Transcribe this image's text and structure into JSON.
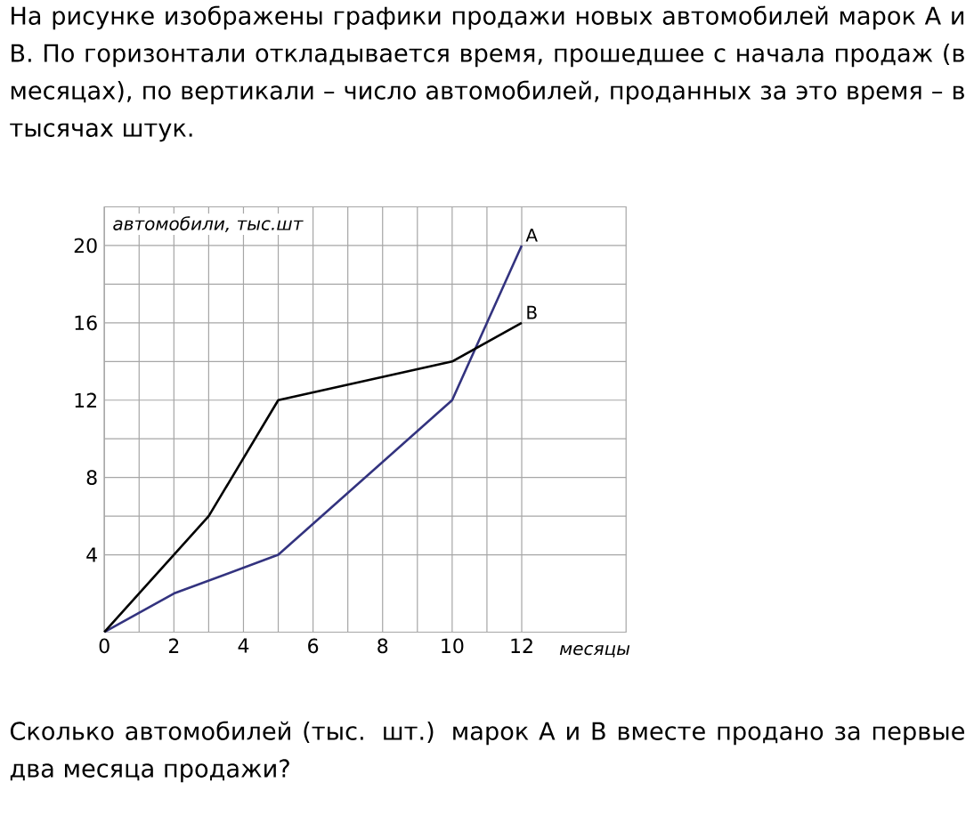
{
  "chart_data": {
    "type": "line",
    "title": "На рисунке изображены графики продажи новых автомобилей марок А и В. По горизонтали откладывается время, прошедшее с начала продаж (в месяцах), по вертикали – число автомобилей, проданных за это время – в тысячах штук.",
    "annotations": [
      "Сколько автомобилей (тыс. шт.) марок А и В вместе продано за первые два месяца продажи?"
    ],
    "xlabel": "месяцы",
    "ylabel": "автомобили, тыс.шт",
    "xlim": [
      0,
      15
    ],
    "ylim": [
      0,
      22
    ],
    "xticks": [
      0,
      2,
      4,
      6,
      8,
      10,
      12
    ],
    "yticks": [
      4,
      8,
      12,
      16,
      20
    ],
    "grid": true,
    "series": [
      {
        "name": "A",
        "color": "#33337f",
        "x": [
          0,
          2,
          5,
          10,
          12
        ],
        "values": [
          0,
          2,
          4,
          12,
          20
        ]
      },
      {
        "name": "B",
        "color": "#000000",
        "x": [
          0,
          3,
          5,
          10,
          12
        ],
        "values": [
          0,
          6,
          12,
          14,
          16
        ]
      }
    ]
  }
}
